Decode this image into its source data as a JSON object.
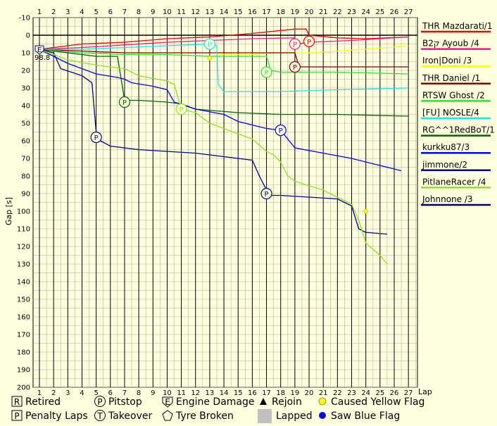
{
  "chart_data": {
    "type": "line",
    "xlabel": "Lap",
    "ylabel": "Gap [s]",
    "xlim": [
      1,
      27.5
    ],
    "ylim": [
      -10,
      200
    ],
    "x_ticks": [
      1,
      2,
      3,
      4,
      5,
      6,
      7,
      8,
      9,
      10,
      11,
      12,
      13,
      14,
      15,
      16,
      17,
      18,
      19,
      20,
      21,
      22,
      23,
      24,
      25,
      26,
      27
    ],
    "y_ticks": [
      -10,
      0,
      10,
      20,
      30,
      40,
      50,
      60,
      70,
      80,
      90,
      100,
      110,
      120,
      130,
      140,
      150,
      160,
      170,
      180,
      190,
      200
    ],
    "legend_position": "right",
    "series": [
      {
        "name": "THR Mazdarati/1",
        "color": "#e00000",
        "points": [
          [
            1,
            8
          ],
          [
            2,
            7
          ],
          [
            4,
            5
          ],
          [
            7,
            4
          ],
          [
            10,
            2
          ],
          [
            13,
            1
          ],
          [
            16,
            -1
          ],
          [
            19,
            -3.5
          ],
          [
            19.8,
            -3.5
          ],
          [
            20,
            0
          ],
          [
            22,
            1.5
          ],
          [
            24,
            2
          ],
          [
            27,
            1
          ]
        ]
      },
      {
        "name": "B2ק Ayoub /4",
        "color": "#e0208a",
        "points": [
          [
            1,
            8
          ],
          [
            4,
            7
          ],
          [
            7,
            5.5
          ],
          [
            10,
            4
          ],
          [
            13,
            3
          ],
          [
            16,
            2
          ],
          [
            19,
            1.5
          ],
          [
            19.2,
            5
          ],
          [
            20,
            4
          ],
          [
            23,
            3
          ],
          [
            25,
            2
          ],
          [
            27,
            1
          ]
        ]
      },
      {
        "name": "Iron|Doni /3",
        "color": "#ffff20",
        "points": [
          [
            1,
            8
          ],
          [
            4,
            9
          ],
          [
            7,
            10
          ],
          [
            10,
            11
          ],
          [
            12,
            11.5
          ],
          [
            13,
            12
          ],
          [
            14,
            11
          ],
          [
            16,
            11
          ],
          [
            18,
            10
          ],
          [
            20,
            10
          ],
          [
            24,
            8
          ],
          [
            27,
            6
          ]
        ]
      },
      {
        "name": "THR Daniel /1",
        "color": "#800000",
        "points": [
          [
            1,
            8
          ],
          [
            4,
            9
          ],
          [
            7,
            10
          ],
          [
            10,
            10
          ],
          [
            13,
            10
          ],
          [
            16,
            10
          ],
          [
            18,
            10
          ],
          [
            19,
            10
          ],
          [
            19.3,
            18
          ],
          [
            21,
            18
          ],
          [
            24,
            18
          ],
          [
            27,
            18
          ]
        ]
      },
      {
        "name": "RTSW Ghost /2",
        "color": "#30e030",
        "points": [
          [
            1,
            8
          ],
          [
            4,
            10
          ],
          [
            7,
            11
          ],
          [
            10,
            11
          ],
          [
            13,
            12
          ],
          [
            16,
            12
          ],
          [
            17,
            12
          ],
          [
            17.3,
            20
          ],
          [
            18,
            21
          ],
          [
            22,
            21
          ],
          [
            27,
            22
          ]
        ]
      },
      {
        "name": "[FU] NOSLE/4",
        "color": "#20e0e0",
        "points": [
          [
            1,
            8
          ],
          [
            4,
            8
          ],
          [
            7,
            7
          ],
          [
            10,
            6
          ],
          [
            13,
            5
          ],
          [
            13.5,
            6
          ],
          [
            13.6,
            28
          ],
          [
            14,
            32
          ],
          [
            18,
            32
          ],
          [
            22,
            31
          ],
          [
            27,
            30
          ]
        ]
      },
      {
        "name": "RG^^1RedBoT/1",
        "color": "#006400",
        "points": [
          [
            1,
            8
          ],
          [
            3,
            10
          ],
          [
            5,
            12
          ],
          [
            6.5,
            12
          ],
          [
            7,
            37
          ],
          [
            8,
            37
          ],
          [
            10,
            38
          ],
          [
            11,
            39
          ],
          [
            12,
            42
          ],
          [
            15,
            44
          ],
          [
            18,
            45
          ],
          [
            22,
            45
          ],
          [
            27,
            46
          ]
        ]
      },
      {
        "name": "kurkku87/3",
        "color": "#0000e0",
        "points": [
          [
            1,
            8
          ],
          [
            3,
            16
          ],
          [
            5,
            22
          ],
          [
            6.5,
            24
          ],
          [
            7,
            25
          ],
          [
            7.5,
            27
          ],
          [
            9,
            29
          ],
          [
            10,
            31
          ],
          [
            10.5,
            38
          ],
          [
            12,
            42
          ],
          [
            14,
            45
          ],
          [
            15,
            49
          ],
          [
            17,
            53
          ],
          [
            18,
            54
          ],
          [
            19,
            64
          ],
          [
            21,
            67
          ],
          [
            23,
            70
          ],
          [
            25,
            74
          ],
          [
            26.5,
            77
          ]
        ]
      },
      {
        "name": "jimmone/2",
        "color": "#000080",
        "points": [
          [
            1,
            8
          ],
          [
            2,
            10
          ],
          [
            2.5,
            19
          ],
          [
            4,
            23
          ],
          [
            4.7,
            27
          ],
          [
            5,
            55
          ],
          [
            5.3,
            60
          ],
          [
            6,
            63
          ],
          [
            8,
            65
          ],
          [
            10,
            66
          ],
          [
            12,
            67
          ],
          [
            14,
            69
          ],
          [
            16,
            71
          ],
          [
            16.5,
            80
          ],
          [
            17,
            88
          ],
          [
            17.3,
            91
          ],
          [
            18,
            91
          ],
          [
            20,
            92
          ],
          [
            22,
            93
          ],
          [
            23,
            97
          ],
          [
            23.5,
            110
          ],
          [
            24,
            112
          ],
          [
            25.5,
            113
          ]
        ]
      },
      {
        "name": "PitlaneRacer /4",
        "color": "#90e020",
        "points": [
          [
            1,
            8
          ],
          [
            3,
            14
          ],
          [
            5,
            17
          ],
          [
            7,
            19
          ],
          [
            8,
            23
          ],
          [
            10,
            26
          ],
          [
            10.5,
            28
          ],
          [
            11,
            42
          ],
          [
            12,
            44
          ],
          [
            13,
            50
          ],
          [
            15,
            56
          ],
          [
            16,
            59
          ],
          [
            17,
            66
          ],
          [
            17.5,
            68
          ],
          [
            18,
            72
          ],
          [
            18.5,
            80
          ],
          [
            19,
            83
          ],
          [
            21,
            88
          ],
          [
            23,
            96
          ],
          [
            23.5,
            105
          ],
          [
            24,
            118
          ],
          [
            25,
            125
          ],
          [
            25.5,
            130
          ]
        ]
      },
      {
        "name": "Johnnone /3",
        "color": "#000060",
        "points": []
      }
    ],
    "markers": [
      {
        "symbol": "E",
        "lap": 1,
        "gap": 8,
        "color": "#000080",
        "label": "98.8"
      },
      {
        "symbol": "P",
        "lap": 13,
        "gap": 5,
        "color": "#20e0e0"
      },
      {
        "symbol": "P",
        "lap": 19,
        "gap": 5,
        "color": "#e0208a"
      },
      {
        "symbol": "P",
        "lap": 20,
        "gap": 3.5,
        "color": "#e00000"
      },
      {
        "symbol": "P",
        "lap": 19,
        "gap": 18,
        "color": "#800000"
      },
      {
        "symbol": "P",
        "lap": 17,
        "gap": 21,
        "color": "#30e030"
      },
      {
        "symbol": "P",
        "lap": 7,
        "gap": 38,
        "color": "#006400"
      },
      {
        "symbol": "P",
        "lap": 11,
        "gap": 42,
        "color": "#90e020"
      },
      {
        "symbol": "P",
        "lap": 5,
        "gap": 58,
        "color": "#000080"
      },
      {
        "symbol": "P",
        "lap": 18,
        "gap": 54,
        "color": "#0000e0"
      },
      {
        "symbol": "P",
        "lap": 17,
        "gap": 90,
        "color": "#000080"
      }
    ],
    "yellow_dots": [
      {
        "lap": 13,
        "gap": 13
      },
      {
        "lap": 24,
        "gap": 100
      }
    ],
    "key": [
      {
        "symbol": "R",
        "shape": "square",
        "text": "Retired"
      },
      {
        "symbol": "P",
        "shape": "circle",
        "text": "Pitstop"
      },
      {
        "symbol": "E",
        "shape": "shield",
        "text": "Engine Damage"
      },
      {
        "symbol": "",
        "shape": "triangle",
        "text": "Rejoin"
      },
      {
        "symbol": "",
        "shape": "yellow-dot",
        "text": "Caused Yellow Flag"
      },
      {
        "symbol": "P",
        "shape": "square",
        "text": "Penalty Laps"
      },
      {
        "symbol": "T",
        "shape": "circle",
        "text": "Takeover"
      },
      {
        "symbol": "",
        "shape": "tyre",
        "text": "Tyre Broken"
      },
      {
        "symbol": "",
        "shape": "grey-box",
        "text": "Lapped"
      },
      {
        "symbol": "",
        "shape": "blue-dot",
        "text": "Saw Blue Flag"
      }
    ]
  }
}
